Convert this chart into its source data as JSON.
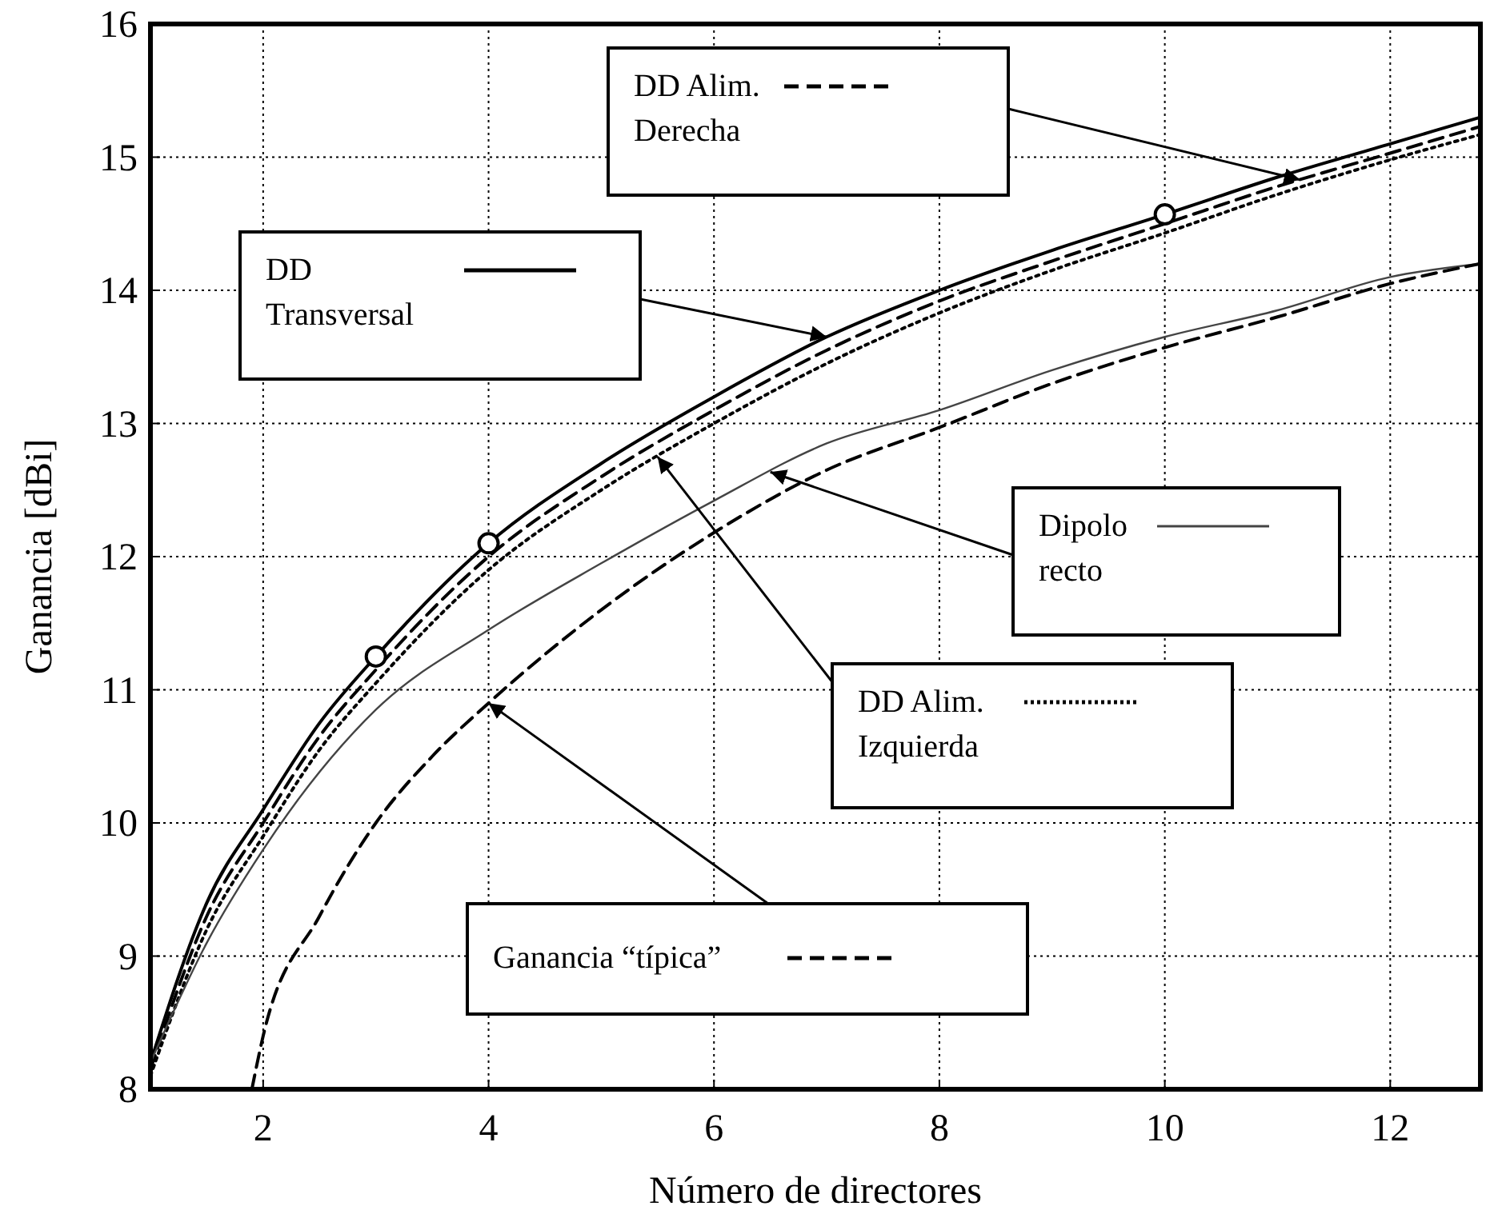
{
  "chart_data": {
    "type": "line",
    "xlabel": "Número de directores",
    "ylabel": "Ganancia [dBi]",
    "xlim": [
      1,
      12.8
    ],
    "xticks": [
      2,
      4,
      6,
      8,
      10,
      12
    ],
    "ylim": [
      8,
      16
    ],
    "yticks": [
      8,
      9,
      10,
      11,
      12,
      13,
      14,
      15,
      16
    ],
    "grid": true,
    "legend": "top right",
    "series": [
      {
        "name": "DD Transversal",
        "color": "#000000",
        "line_style": "solid",
        "x": [
          1,
          1.5,
          2,
          2.5,
          3,
          4,
          5,
          6,
          7,
          8,
          9,
          10,
          11,
          12,
          12.8
        ],
        "values": [
          8.2,
          9.4,
          10.1,
          10.75,
          11.25,
          12.1,
          12.7,
          13.2,
          13.65,
          14.0,
          14.3,
          14.57,
          14.85,
          15.1,
          15.3
        ]
      },
      {
        "name": "DD Alim. Derecha",
        "color": "#000000",
        "line_style": "dashed",
        "x": [
          1,
          1.5,
          2,
          2.5,
          3,
          4,
          5,
          6,
          7,
          8,
          9,
          10,
          11,
          12,
          12.8
        ],
        "values": [
          8.15,
          9.3,
          10.0,
          10.65,
          11.15,
          12.0,
          12.6,
          13.1,
          13.55,
          13.92,
          14.22,
          14.5,
          14.78,
          15.03,
          15.23
        ]
      },
      {
        "name": "DD Alim. Izquierda",
        "color": "#000000",
        "line_style": "dotted",
        "x": [
          1,
          1.5,
          2,
          2.5,
          3,
          4,
          5,
          6,
          7,
          8,
          9,
          10,
          11,
          12,
          12.8
        ],
        "values": [
          8.1,
          9.2,
          9.9,
          10.55,
          11.05,
          11.9,
          12.5,
          13.0,
          13.45,
          13.83,
          14.15,
          14.43,
          14.72,
          14.98,
          15.17
        ]
      },
      {
        "name": "Dipolo recto",
        "color": "#444444",
        "line_style": "solid",
        "x": [
          1,
          1.5,
          2,
          3,
          4,
          5,
          6,
          7,
          8,
          9,
          10,
          11,
          12,
          12.8
        ],
        "values": [
          8.2,
          9.1,
          9.8,
          10.85,
          11.45,
          11.95,
          12.42,
          12.85,
          13.1,
          13.4,
          13.65,
          13.85,
          14.1,
          14.2
        ]
      },
      {
        "name": "Ganancia “típica”",
        "color": "#000000",
        "line_style": "dashed",
        "x": [
          1.9,
          2,
          2.5,
          3,
          3.5,
          4,
          5,
          6,
          7,
          8,
          9,
          10,
          11,
          12,
          12.8
        ],
        "values": [
          8.0,
          8.4,
          9.3,
          10.0,
          10.5,
          10.9,
          11.6,
          12.18,
          12.65,
          12.97,
          13.3,
          13.57,
          13.8,
          14.05,
          14.2
        ]
      },
      {
        "type": "scatter",
        "color": "#000000",
        "marker": "circle",
        "x": [
          3,
          4,
          10
        ],
        "values": [
          11.25,
          12.1,
          14.57
        ]
      }
    ]
  }
}
